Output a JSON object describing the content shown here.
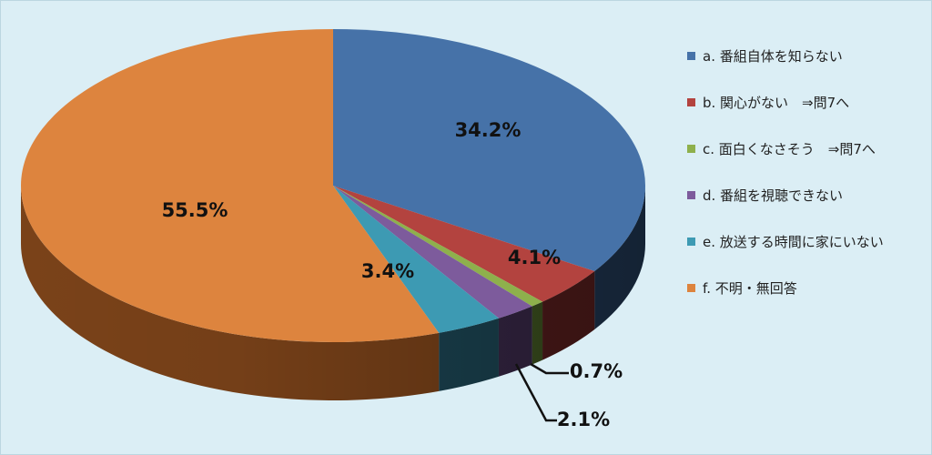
{
  "chart_data": {
    "type": "pie",
    "style": "3d",
    "slices": [
      {
        "label": "a. 番組自体を知らない",
        "value": 34.2,
        "value_label": "34.2%",
        "color": "#4672a8",
        "side_color": "#1f3550"
      },
      {
        "label": "b. 関心がない　⇒問7へ",
        "value": 4.1,
        "value_label": "4.1%",
        "color": "#b3433f",
        "side_color": "#521c1b"
      },
      {
        "label": "c. 面白くなさそう　⇒問7へ",
        "value": 0.7,
        "value_label": "0.7%",
        "color": "#8eb04c",
        "side_color": "#3e5320"
      },
      {
        "label": "d. 番組を視聴できない",
        "value": 2.1,
        "value_label": "2.1%",
        "color": "#7d5b9c",
        "side_color": "#372746"
      },
      {
        "label": "e. 放送する時間に家にいない",
        "value": 3.4,
        "value_label": "3.4%",
        "color": "#3d9ab3",
        "side_color": "#1b4452"
      },
      {
        "label": "f. 不明・無回答",
        "value": 55.5,
        "value_label": "55.5%",
        "color": "#dd843e",
        "side_color": "#7a4219"
      }
    ],
    "legend_position": "right"
  }
}
